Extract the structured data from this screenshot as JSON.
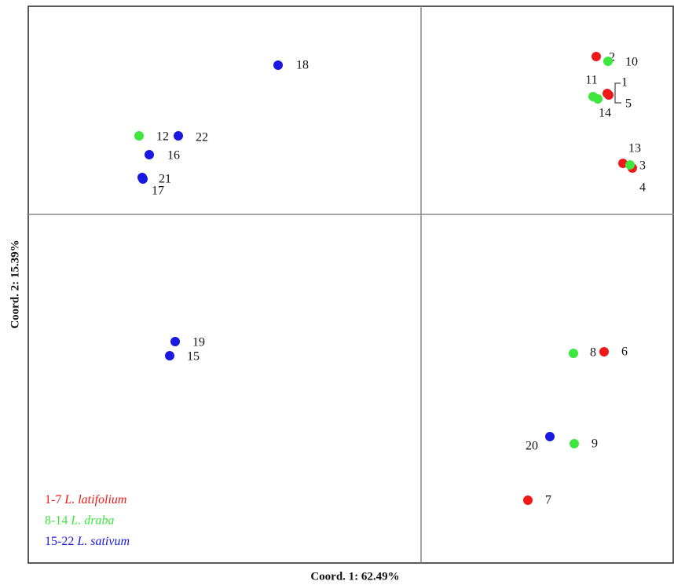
{
  "chart_data": {
    "type": "scatter",
    "xlabel": "Coord. 1: 62.49%",
    "ylabel": "Coord. 2: 15.39%",
    "xlim": [
      -5,
      3.22
    ],
    "ylim": [
      -4.44,
      2.65
    ],
    "series": [
      {
        "name": "L. latifolium",
        "range": "1-7",
        "color": "#f01818",
        "labels": [
          "1",
          "2",
          "3",
          "4",
          "5",
          "6",
          "7"
        ],
        "x": [
          2.37,
          2.23,
          2.57,
          2.69,
          2.39,
          2.33,
          1.36
        ],
        "y": [
          1.54,
          2.01,
          0.65,
          0.59,
          1.52,
          -1.75,
          -3.64
        ]
      },
      {
        "name": "L. draba",
        "range": "8-14",
        "color": "#3ee63e",
        "labels": [
          "8",
          "9",
          "10",
          "11",
          "12",
          "13",
          "14"
        ],
        "x": [
          1.94,
          1.95,
          2.38,
          2.19,
          -3.59,
          2.66,
          2.25
        ],
        "y": [
          -1.77,
          -2.92,
          1.95,
          1.5,
          1.0,
          0.63,
          1.47
        ]
      },
      {
        "name": "L. sativum",
        "range": "15-22",
        "color": "#1818e0",
        "labels": [
          "15",
          "16",
          "17",
          "18",
          "19",
          "20",
          "21",
          "22"
        ],
        "x": [
          -3.2,
          -3.46,
          -3.54,
          -1.82,
          -3.13,
          1.64,
          -3.55,
          -3.09
        ],
        "y": [
          -1.8,
          0.76,
          0.45,
          1.9,
          -1.62,
          -2.83,
          0.47,
          1.0
        ]
      }
    ]
  }
}
